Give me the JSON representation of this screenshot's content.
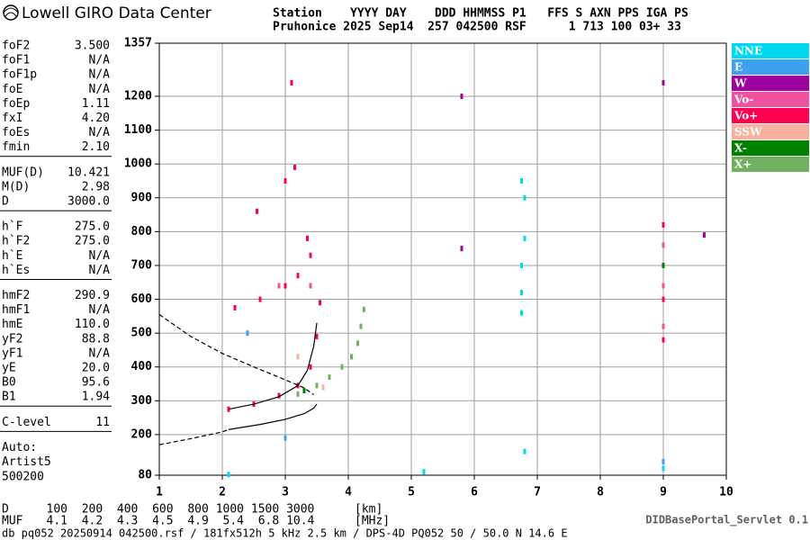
{
  "header": {
    "logo": "Lowell GIRO Data Center",
    "station_lines": [
      "Station    YYYY DAY    DDD HHMMSS P1   FFS S AXN PPS IGA PS",
      "Pruhonice 2025 Sep14  257 042500 RSF      1 713 100 03+ 33"
    ]
  },
  "parameters": [
    [
      [
        "foF2",
        "3.500"
      ],
      [
        "foF1",
        "N/A"
      ],
      [
        "foF1p",
        "N/A"
      ],
      [
        "foE",
        "N/A"
      ],
      [
        "foEp",
        "1.11"
      ],
      [
        "fxI",
        "4.20"
      ],
      [
        "foEs",
        "N/A"
      ],
      [
        "fmin",
        "2.10"
      ]
    ],
    [
      [
        "MUF(D)",
        "10.421"
      ],
      [
        "M(D)",
        "2.98"
      ],
      [
        "D",
        "3000.0"
      ]
    ],
    [
      [
        "h`F",
        "275.0"
      ],
      [
        "h`F2",
        "275.0"
      ],
      [
        "h`E",
        "N/A"
      ],
      [
        "h`Es",
        "N/A"
      ]
    ],
    [
      [
        "hmF2",
        "290.9"
      ],
      [
        "hmF1",
        "N/A"
      ],
      [
        "hmE",
        "110.0"
      ],
      [
        "yF2",
        "88.8"
      ],
      [
        "yF1",
        "N/A"
      ],
      [
        "yE",
        "20.0"
      ],
      [
        "B0",
        "95.6"
      ],
      [
        "B1",
        "1.94"
      ]
    ],
    [
      [
        "C-level",
        "11"
      ]
    ]
  ],
  "autoscaling": [
    "Auto:",
    "Artist5",
    "500200"
  ],
  "chart_data": {
    "type": "scatter",
    "xlim": [
      1,
      10
    ],
    "xticks": [
      1,
      2,
      3,
      4,
      5,
      6,
      7,
      8,
      9,
      10
    ],
    "ylim": [
      80,
      1357
    ],
    "yticks": [
      80,
      200,
      300,
      400,
      500,
      600,
      700,
      800,
      900,
      1000,
      1100,
      1200,
      1357
    ],
    "grid": true,
    "series": [
      {
        "name": "NNE",
        "color": "#00d8f0",
        "x": [
          6.75,
          6.75,
          6.75,
          6.8,
          6.8,
          6.75,
          9.0,
          6.8,
          2.1,
          5.2
        ],
        "y": [
          560,
          620,
          700,
          780,
          900,
          950,
          100,
          150,
          82,
          90
        ]
      },
      {
        "name": "E",
        "color": "#40a0f0",
        "x": [
          3.0,
          2.4,
          9.0
        ],
        "y": [
          190,
          500,
          120
        ]
      },
      {
        "name": "W",
        "color": "#a000a0",
        "x": [
          5.8,
          5.8,
          9.65,
          9.0
        ],
        "y": [
          750,
          1200,
          790,
          1240
        ]
      },
      {
        "name": "Vo-",
        "color": "#f050a0",
        "x": [
          9.0,
          9.0,
          9.0,
          3.4,
          2.9
        ],
        "y": [
          520,
          640,
          760,
          640,
          640
        ]
      },
      {
        "name": "Vo+",
        "color": "#ff0050",
        "x": [
          2.1,
          2.5,
          2.9,
          3.2,
          3.4,
          3.5,
          2.2,
          2.6,
          3.0,
          3.2,
          3.4,
          3.55,
          2.55,
          3.0,
          3.15,
          9.0,
          9.0,
          9.0,
          3.35,
          3.1
        ],
        "y": [
          275,
          290,
          315,
          345,
          400,
          490,
          575,
          600,
          640,
          670,
          730,
          590,
          860,
          950,
          990,
          480,
          600,
          820,
          780,
          1240
        ]
      },
      {
        "name": "SSW",
        "color": "#f8b0a0",
        "x": [
          3.2,
          3.6
        ],
        "y": [
          430,
          340
        ]
      },
      {
        "name": "X-",
        "color": "#008000",
        "x": [
          3.3,
          9.0
        ],
        "y": [
          330,
          700
        ]
      },
      {
        "name": "X+",
        "color": "#70b060",
        "x": [
          3.2,
          3.5,
          3.7,
          3.9,
          4.05,
          4.15,
          4.2,
          4.25
        ],
        "y": [
          320,
          345,
          370,
          400,
          430,
          470,
          520,
          570
        ]
      }
    ],
    "curves": [
      {
        "style": "solid",
        "x": [
          2.1,
          2.5,
          2.9,
          3.2,
          3.35,
          3.45,
          3.5
        ],
        "y": [
          275,
          290,
          312,
          345,
          390,
          460,
          530
        ]
      },
      {
        "style": "solid",
        "x": [
          2.1,
          2.6,
          3.0,
          3.3,
          3.45,
          3.5
        ],
        "y": [
          215,
          230,
          245,
          262,
          278,
          290
        ]
      },
      {
        "style": "dashed",
        "x": [
          1.0,
          1.5,
          2.0,
          2.1
        ],
        "y": [
          170,
          188,
          208,
          215
        ]
      },
      {
        "style": "dashed",
        "x": [
          1.0,
          1.5,
          2.0,
          2.5,
          3.0,
          3.3,
          3.45
        ],
        "y": [
          555,
          490,
          440,
          400,
          362,
          338,
          318
        ]
      }
    ]
  },
  "distance_table": {
    "rows": [
      {
        "label": "D",
        "values": [
          100,
          200,
          400,
          600,
          800,
          1000,
          1500,
          3000
        ],
        "unit": "[km]"
      },
      {
        "label": "MUF",
        "values": [
          4.1,
          4.2,
          4.3,
          4.5,
          4.9,
          5.4,
          6.8,
          10.4
        ],
        "unit": "[MHz]"
      }
    ]
  },
  "footer": {
    "file_info": "db pq052 20250914 042500.rsf / 181fx512h 5 kHz 2.5 km / DPS-4D PQ052 50 / 50.0 N 14.6 E",
    "servlet": "DIDBasePortal_Servlet 0.1"
  }
}
